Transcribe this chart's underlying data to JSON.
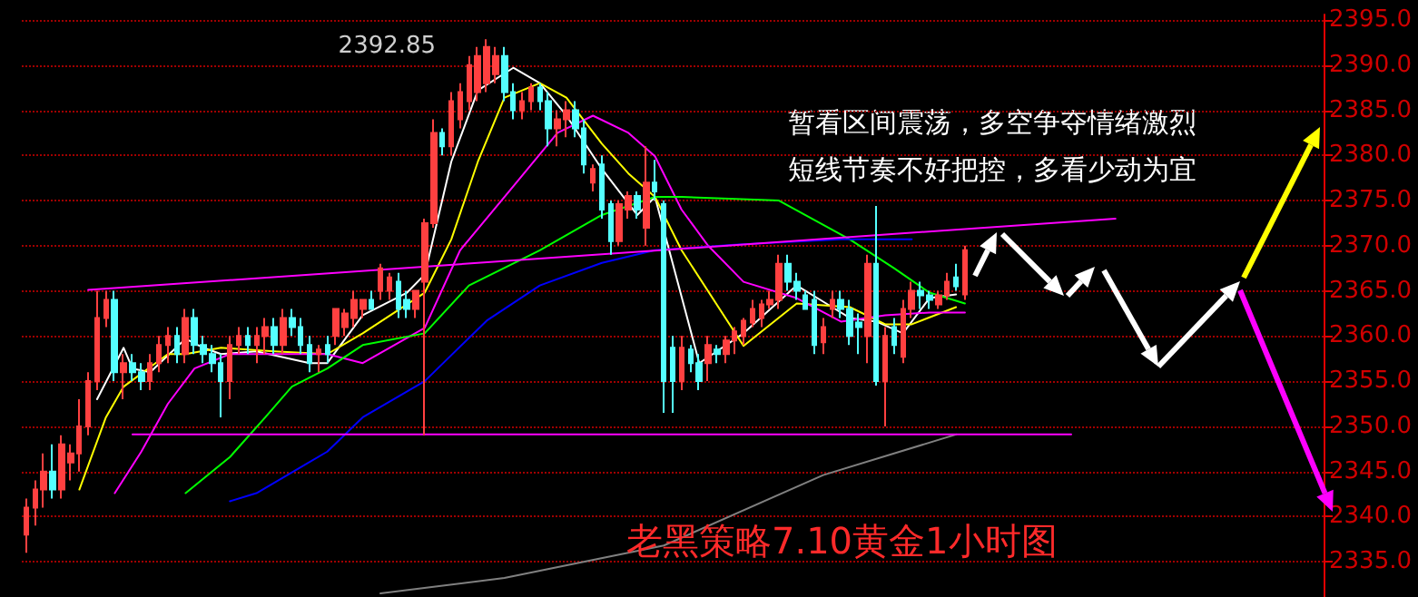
{
  "chart_data": {
    "type": "candlestick",
    "title": "老黑策略7.10黄金1小时图",
    "annotations": [
      "暂看区间震荡，多空争夺情绪激烈",
      "短线节奏不好把控，多看少动为宜"
    ],
    "categories": [
      null,
      null,
      null,
      null,
      null,
      null,
      null,
      null,
      null,
      null,
      null,
      null,
      null,
      null,
      null,
      null,
      null,
      null,
      null,
      null,
      null,
      null,
      null,
      null,
      null,
      null,
      null,
      null,
      null,
      null,
      null,
      null,
      null,
      null,
      null,
      null,
      null,
      null,
      null,
      null,
      null,
      null,
      null,
      null,
      null,
      null,
      null,
      null,
      null,
      null,
      null,
      null,
      null,
      null,
      null,
      null,
      null,
      null,
      null,
      null,
      null,
      null,
      null,
      null,
      null,
      null,
      null,
      null,
      null,
      null,
      null,
      null,
      null,
      null,
      null,
      null,
      null,
      null,
      null,
      null,
      null,
      null,
      null,
      null,
      null,
      null,
      null,
      null,
      null,
      null,
      null,
      null,
      null,
      null,
      null,
      null,
      null,
      null,
      null,
      null,
      null,
      null,
      null,
      null,
      null,
      null,
      null,
      null,
      null,
      null,
      null,
      null,
      null,
      null,
      null,
      null,
      null,
      null,
      null,
      null,
      null,
      null,
      null,
      null,
      null,
      null,
      null,
      null,
      null,
      null,
      null,
      null,
      null,
      null,
      null,
      null,
      null,
      null,
      null,
      null,
      null,
      null,
      null,
      null,
      null,
      null,
      null
    ],
    "colors": [
      "#ff4040",
      "#ff4040",
      "#ff4040",
      "#54ffff",
      "#ff4040",
      "#ff4040",
      "#ff4040",
      "#ff4040",
      "#ff4040",
      "#ff4040",
      "#54ffff",
      "#ff4040",
      "#54ffff",
      "#54ffff",
      "#ff4040",
      "#ff4040",
      "#ff4040",
      "#54ffff",
      "#ff4040",
      "#54ffff",
      "#54ffff",
      "#54ffff",
      "#54ffff",
      "#ff4040",
      "#ff4040",
      "#54ffff",
      "#ff4040",
      "#ff4040",
      "#54ffff",
      "#ff4040",
      "#54ffff",
      "#54ffff",
      "#54ffff",
      "#ff4040",
      "#54ffff",
      "#ff4040",
      "#ff4040",
      "#ff4040",
      "#ff4040",
      "#54ffff",
      "#ff4040",
      "#ff4040",
      "#54ffff",
      "#54ffff",
      "#ff4040",
      "#ff4040",
      "#ff4040",
      "#54ffff",
      "#ff4040",
      "#ff4040",
      "#ff4040",
      "#ff4040",
      "#ff4040",
      "#ff4040",
      "#54ffff",
      "#54ffff",
      "#ff4040",
      "#ff4040",
      "#54ffff",
      "#54ffff",
      "#ff4040",
      "#ff4040",
      "#54ffff",
      "#54ffff",
      "#ff4040",
      "#54ffff",
      "#54ffff",
      "#ff4040",
      "#ff4040",
      "#54ffff",
      "#ff4040",
      "#54ffff",
      "#54ffff",
      "#54ffff",
      "#ff4040",
      "#54ffff",
      "#54ffff",
      "#ff4040",
      "#54ffff",
      "#ff4040",
      "#ff4040",
      "#ff4040",
      "#ff4040",
      "#ff4040",
      "#ff4040",
      "#ff4040",
      "#54ffff",
      "#54ffff",
      "#54ffff",
      "#54ffff",
      "#ff4040",
      "#ff4040",
      "#54ffff",
      "#54ffff",
      "#54ffff",
      "#ff4040",
      "#54ffff",
      "#ff4040",
      "#54ffff",
      "#ff4040",
      "#ff4040",
      "#54ffff",
      "#54ffff",
      "#ff4040",
      "#ff4040",
      "#54ffff",
      "#ff4040",
      null,
      null,
      null,
      null,
      null,
      null,
      null,
      null,
      null,
      null,
      null,
      null,
      null,
      null,
      null,
      null,
      null,
      null,
      null,
      null,
      null,
      null,
      null,
      null,
      null,
      null,
      null,
      null,
      null,
      null,
      null,
      null,
      null,
      null,
      null,
      null,
      null,
      null,
      null,
      null
    ],
    "ohlc": [
      [
        2338,
        2342,
        2336,
        2341
      ],
      [
        2341,
        2344,
        2339,
        2343
      ],
      [
        2343,
        2347,
        2341,
        2345
      ],
      [
        2345,
        2348,
        2342,
        2343
      ],
      [
        2343,
        2349,
        2342,
        2348
      ],
      [
        2346,
        2348,
        2344,
        2347
      ],
      [
        2347,
        2353,
        2345,
        2350
      ],
      [
        2350,
        2356,
        2349,
        2355
      ],
      [
        2355,
        2365,
        2354,
        2362
      ],
      [
        2362,
        2365,
        2361,
        2364
      ],
      [
        2364,
        2365,
        2355,
        2356
      ],
      [
        2356,
        2358,
        2353,
        2357
      ],
      [
        2357,
        2358,
        2355,
        2356
      ],
      [
        2356,
        2357,
        2354,
        2355
      ],
      [
        2355,
        2358,
        2354,
        2357
      ],
      [
        2357,
        2360,
        2356,
        2359
      ],
      [
        2359,
        2361,
        2357,
        2360
      ],
      [
        2360,
        2361,
        2357,
        2358
      ],
      [
        2358,
        2363,
        2357,
        2362
      ],
      [
        2362,
        2363,
        2358,
        2359
      ],
      [
        2359,
        2360,
        2357,
        2358
      ],
      [
        2358,
        2359,
        2356,
        2357
      ],
      [
        2357,
        2358,
        2351,
        2355
      ],
      [
        2355,
        2360,
        2353,
        2359
      ],
      [
        2359,
        2361,
        2358,
        2360
      ],
      [
        2360,
        2361,
        2358,
        2359
      ],
      [
        2359,
        2361,
        2357,
        2360
      ],
      [
        2360,
        2362,
        2358,
        2361
      ],
      [
        2361,
        2362,
        2358,
        2359
      ],
      [
        2359,
        2363,
        2358,
        2362
      ],
      [
        2362,
        2363,
        2360,
        2361
      ],
      [
        2361,
        2362,
        2358,
        2359
      ],
      [
        2359,
        2360,
        2356,
        2357
      ],
      [
        2358,
        2359,
        2356,
        2358.5
      ],
      [
        2359,
        2360,
        2357,
        2358
      ],
      [
        2360,
        2363,
        2359,
        2363
      ],
      [
        2361,
        2363,
        2360,
        2362.5
      ],
      [
        2362,
        2365,
        2361,
        2364
      ],
      [
        2363,
        2364,
        2362,
        2364
      ],
      [
        2364,
        2365,
        2363,
        2363
      ],
      [
        2365,
        2368,
        2364,
        2367.5
      ],
      [
        2365,
        2367,
        2364,
        2366.5
      ],
      [
        2366,
        2367,
        2362,
        2363
      ],
      [
        2364,
        2365,
        2362,
        2363
      ],
      [
        2363,
        2365,
        2362,
        2365
      ],
      [
        2366,
        2373,
        2349,
        2372.5
      ],
      [
        2372.5,
        2384,
        2372,
        2382.5
      ],
      [
        2382.5,
        2383,
        2380,
        2381
      ],
      [
        2381,
        2387,
        2380,
        2386
      ],
      [
        2384,
        2388,
        2383,
        2387
      ],
      [
        2386,
        2391,
        2385,
        2390
      ],
      [
        2387,
        2392,
        2386,
        2391
      ],
      [
        2388,
        2392.85,
        2387,
        2392
      ],
      [
        2389,
        2392,
        2388,
        2391
      ],
      [
        2391,
        2392,
        2386,
        2387
      ],
      [
        2387,
        2388,
        2384,
        2385
      ],
      [
        2385,
        2387,
        2384,
        2386
      ],
      [
        2386,
        2388,
        2385,
        2387.5
      ],
      [
        2387.5,
        2388,
        2385,
        2386
      ],
      [
        2386,
        2387,
        2381,
        2383
      ],
      [
        2383,
        2385,
        2381,
        2384
      ],
      [
        2384,
        2386,
        2382,
        2385
      ],
      [
        2385,
        2386,
        2382,
        2383
      ],
      [
        2383,
        2384,
        2378,
        2379
      ],
      [
        2377,
        2379,
        2376,
        2378.5
      ],
      [
        2379,
        2380,
        2373,
        2374
      ],
      [
        2374.6,
        2375,
        2369,
        2370.5
      ],
      [
        2370.5,
        2375,
        2370,
        2374.6
      ],
      [
        2374,
        2376,
        2373,
        2375.5
      ],
      [
        2375.5,
        2376,
        2373,
        2374
      ],
      [
        2372,
        2381,
        2370,
        2377
      ],
      [
        2377,
        2379.5,
        2375,
        2376
      ],
      [
        2374.6,
        2375,
        2351.5,
        2355
      ],
      [
        2358.7,
        2360,
        2351.5,
        2355
      ],
      [
        2355,
        2360,
        2354,
        2358.7
      ],
      [
        2358.5,
        2359,
        2356,
        2357
      ],
      [
        2357,
        2358,
        2354,
        2355
      ],
      [
        2357,
        2360,
        2355,
        2359
      ],
      [
        2358.5,
        2359,
        2357,
        2358
      ],
      [
        2358,
        2360,
        2357,
        2359.5
      ],
      [
        2359.5,
        2361,
        2358,
        2360.5
      ],
      [
        2360,
        2362,
        2359,
        2361.7
      ],
      [
        2361.5,
        2364,
        2361,
        2363
      ],
      [
        2362,
        2364,
        2361,
        2363.5
      ],
      [
        2363.5,
        2365,
        2363,
        2364
      ],
      [
        2364,
        2369,
        2363,
        2368
      ],
      [
        2368,
        2369,
        2365,
        2366
      ],
      [
        2366,
        2367,
        2364,
        2365
      ],
      [
        2364.5,
        2365,
        2363,
        2363
      ],
      [
        2364,
        2365,
        2358,
        2359
      ],
      [
        2359.3,
        2362,
        2358,
        2361
      ],
      [
        2363,
        2365,
        2362,
        2364
      ],
      [
        2364,
        2365,
        2362,
        2363
      ],
      [
        2363,
        2364,
        2359,
        2360
      ],
      [
        2361.5,
        2362.5,
        2358,
        2361
      ],
      [
        2360,
        2369,
        2357,
        2368
      ],
      [
        2368,
        2374.4,
        2354.5,
        2355
      ],
      [
        2355,
        2361,
        2350,
        2360
      ],
      [
        2361,
        2362,
        2358,
        2359
      ],
      [
        2357.7,
        2364,
        2357,
        2363
      ],
      [
        2363,
        2366,
        2362,
        2365
      ],
      [
        2365,
        2366,
        2363,
        2364.5
      ],
      [
        2364.5,
        2365,
        2363,
        2364
      ],
      [
        2363.5,
        2365,
        2363,
        2364.5
      ],
      [
        2364.5,
        2367,
        2364,
        2366
      ],
      [
        2366.5,
        2368,
        2365,
        2365.5
      ],
      [
        2364.6,
        2370,
        2364,
        2369.5
      ],
      null,
      null,
      null,
      null,
      null,
      null,
      null,
      null,
      null,
      null,
      null,
      null,
      null,
      null,
      null,
      null,
      null,
      null,
      null,
      null,
      null,
      null,
      null,
      null,
      null,
      null,
      null,
      null,
      null,
      null,
      null,
      null,
      null,
      null,
      null,
      null,
      null,
      null,
      null,
      null
    ],
    "value_labels": [
      null,
      null,
      null,
      null,
      null,
      null,
      null,
      null,
      null,
      null,
      null,
      null,
      null,
      null,
      null,
      null,
      null,
      null,
      null,
      null,
      null,
      null,
      null,
      null,
      null,
      null,
      null,
      null,
      null,
      null,
      null,
      null,
      null,
      null,
      null,
      null,
      null,
      null,
      null,
      null,
      null,
      null,
      null,
      null,
      null,
      null,
      null,
      null,
      null,
      null,
      null,
      null,
      "2392.85",
      null,
      null,
      null,
      null,
      null,
      null,
      null,
      null,
      null,
      null,
      null,
      null,
      null,
      null,
      null,
      null,
      null,
      null,
      null,
      null,
      null,
      null,
      null,
      null,
      null,
      null,
      null,
      null,
      null,
      null,
      null,
      null,
      null,
      null,
      null,
      null,
      null,
      null,
      null,
      null,
      null,
      null,
      null,
      null,
      null,
      null,
      null,
      null,
      null,
      null,
      null,
      null,
      null,
      null,
      null,
      null,
      null,
      null,
      null,
      null,
      null,
      null,
      null,
      null,
      null,
      null,
      null,
      null,
      null,
      null,
      null,
      null,
      null,
      null,
      null,
      null,
      null,
      null,
      null,
      null,
      null,
      null,
      null,
      null,
      null,
      null,
      null,
      null,
      null,
      null,
      null,
      null,
      null,
      null
    ],
    "series": [
      {
        "type": "line",
        "color": "#ffffff",
        "values": [
          null,
          null,
          null,
          null,
          null,
          null,
          null,
          null,
          2353,
          null,
          null,
          2358.7,
          2356.4,
          null,
          2356,
          null,
          null,
          null,
          2359.7,
          null,
          2358.7,
          null,
          2358,
          null,
          null,
          null,
          2358.3,
          null,
          null,
          null,
          null,
          null,
          2357,
          null,
          2357,
          null,
          null,
          null,
          2362.3,
          null,
          null,
          null,
          null,
          2364.8,
          null,
          2366.8,
          null,
          null,
          2379.3,
          null,
          null,
          2387.2,
          null,
          null,
          null,
          2389.7,
          null,
          null,
          2388,
          null,
          null,
          2384.4,
          null,
          null,
          null,
          2378.5,
          null,
          null,
          null,
          2373.4,
          null,
          2375.4,
          null,
          null,
          null,
          null,
          2357,
          null,
          null,
          null,
          null,
          2360.3,
          null,
          null,
          null,
          null,
          null,
          2365.6,
          null,
          null,
          2363.8,
          null,
          null,
          2362,
          null,
          null,
          2361.6,
          null,
          null,
          2360.3,
          null,
          null,
          2364.2,
          null,
          null,
          2364.6,
          null,
          null,
          null,
          null,
          null,
          null,
          null,
          null,
          null,
          null,
          null,
          null,
          null,
          null,
          null,
          null,
          null,
          null,
          null,
          null,
          null,
          null,
          null,
          null,
          null,
          null,
          null,
          null,
          null,
          null,
          null,
          null,
          null,
          null,
          null,
          null,
          null,
          null,
          null,
          null,
          null
        ]
      },
      {
        "type": "line",
        "color": "#ffff00",
        "values": [
          null,
          null,
          null,
          null,
          null,
          null,
          2343,
          null,
          null,
          2351,
          null,
          2354.4,
          null,
          null,
          null,
          null,
          2358,
          null,
          2358,
          null,
          null,
          null,
          2358.7,
          null,
          null,
          null,
          null,
          null,
          2358.3,
          null,
          null,
          null,
          null,
          null,
          2358,
          null,
          null,
          null,
          2360.3,
          null,
          null,
          null,
          null,
          null,
          null,
          2364.8,
          null,
          null,
          2370.7,
          null,
          null,
          2379.3,
          null,
          null,
          2386.4,
          null,
          null,
          null,
          2388,
          null,
          null,
          2386.4,
          null,
          null,
          null,
          2381.3,
          null,
          null,
          2378,
          null,
          null,
          2375.4,
          null,
          null,
          2369.5,
          null,
          null,
          null,
          null,
          null,
          null,
          2358.9,
          null,
          null,
          null,
          null,
          null,
          2363.6,
          null,
          null,
          null,
          null,
          null,
          2363.2,
          null,
          null,
          null,
          2361.3,
          null,
          null,
          2361.3,
          null,
          null,
          null,
          null,
          2363.2,
          null,
          null,
          null,
          null,
          null,
          null,
          null,
          null,
          null,
          null,
          null,
          null,
          null,
          null,
          null,
          null,
          null,
          null,
          null,
          null,
          null,
          null,
          null,
          null,
          null,
          null,
          null,
          null,
          null,
          null,
          null,
          null,
          null,
          null,
          null,
          null,
          null,
          null,
          null,
          null,
          null
        ]
      },
      {
        "type": "line",
        "color": "#ff00ff",
        "values": [
          null,
          null,
          null,
          null,
          null,
          null,
          null,
          null,
          null,
          null,
          2342.6,
          null,
          null,
          2347.2,
          null,
          null,
          2352.5,
          null,
          null,
          2356.4,
          null,
          null,
          null,
          2358,
          null,
          null,
          null,
          null,
          null,
          null,
          null,
          null,
          null,
          null,
          2358,
          null,
          null,
          null,
          2357,
          null,
          null,
          null,
          null,
          null,
          null,
          2360.9,
          null,
          null,
          null,
          2369.5,
          null,
          null,
          null,
          null,
          2375.4,
          null,
          null,
          null,
          null,
          null,
          2382.5,
          null,
          null,
          null,
          2384.4,
          null,
          null,
          null,
          2382.5,
          null,
          null,
          2379.9,
          null,
          null,
          2374,
          null,
          null,
          2370,
          null,
          null,
          null,
          2366,
          null,
          null,
          null,
          null,
          null,
          2364.2,
          null,
          null,
          null,
          null,
          2361.6,
          null,
          null,
          null,
          null,
          2362.3,
          null,
          null,
          null,
          null,
          2362.6,
          null,
          null,
          null,
          2362.6,
          null,
          null,
          null,
          null,
          null,
          null,
          null,
          null,
          null,
          null,
          null,
          null,
          null,
          null,
          null,
          null,
          null,
          null,
          null,
          null,
          null,
          null,
          null,
          null,
          null,
          null,
          null,
          null,
          null,
          null,
          null,
          null,
          null,
          null,
          null,
          null,
          null,
          null,
          null,
          null
        ]
      },
      {
        "type": "line",
        "color": "#00ff00",
        "values": [
          null,
          null,
          null,
          null,
          null,
          null,
          null,
          null,
          null,
          null,
          null,
          null,
          null,
          null,
          null,
          null,
          null,
          null,
          2342.6,
          null,
          null,
          null,
          null,
          2346.6,
          null,
          null,
          null,
          2351,
          null,
          null,
          2354.4,
          null,
          null,
          null,
          2356.4,
          null,
          null,
          null,
          2359,
          null,
          null,
          null,
          null,
          null,
          null,
          2360.3,
          null,
          null,
          null,
          null,
          2365.6,
          null,
          null,
          null,
          null,
          null,
          null,
          null,
          2369.5,
          null,
          null,
          null,
          null,
          null,
          null,
          2373.4,
          null,
          null,
          null,
          null,
          null,
          2375.4,
          null,
          null,
          2375.4,
          null,
          null,
          null,
          null,
          null,
          null,
          null,
          null,
          null,
          null,
          2375,
          null,
          null,
          null,
          null,
          null,
          null,
          null,
          2370.7,
          null,
          null,
          null,
          null,
          2367.5,
          null,
          null,
          null,
          2364.8,
          null,
          null,
          null,
          2363.6,
          null,
          null,
          null,
          null,
          null,
          null,
          null,
          null,
          null,
          null,
          null,
          null,
          null,
          null,
          null,
          null,
          null,
          null,
          null,
          null,
          null,
          null,
          null,
          null,
          null,
          null,
          null,
          null,
          null,
          null,
          null,
          null,
          null,
          null,
          null,
          null,
          null,
          null,
          null,
          null
        ]
      },
      {
        "type": "line",
        "color": "#0000ff",
        "values": [
          null,
          null,
          null,
          null,
          null,
          null,
          null,
          null,
          null,
          null,
          null,
          null,
          null,
          null,
          null,
          null,
          null,
          null,
          null,
          null,
          null,
          null,
          null,
          2341.7,
          null,
          null,
          2342.6,
          null,
          null,
          null,
          null,
          null,
          null,
          null,
          2347.2,
          null,
          null,
          null,
          2351,
          null,
          null,
          null,
          null,
          null,
          null,
          2355,
          null,
          null,
          null,
          null,
          null,
          null,
          2361.7,
          null,
          null,
          null,
          null,
          null,
          2365.6,
          null,
          null,
          null,
          null,
          null,
          null,
          2368.1,
          null,
          null,
          null,
          null,
          null,
          2369.5,
          null,
          null,
          null,
          null,
          null,
          null,
          null,
          null,
          2370.1,
          null,
          null,
          null,
          null,
          null,
          null,
          null,
          null,
          null,
          null,
          null,
          2370.7,
          null,
          null,
          null,
          null,
          null,
          null,
          null,
          2370.7,
          null,
          null,
          null,
          null,
          null,
          null,
          null,
          null,
          null,
          null,
          null,
          null,
          null,
          null,
          null,
          null,
          null,
          null,
          null,
          null,
          null,
          null,
          null,
          null,
          null,
          null,
          null,
          null,
          null,
          null,
          null,
          null,
          null,
          null,
          null,
          null,
          null,
          null,
          null,
          null,
          null,
          null,
          null,
          null,
          null,
          null
        ]
      },
      {
        "type": "line",
        "color": "#808080",
        "values": [
          null,
          null,
          null,
          null,
          null,
          null,
          null,
          null,
          null,
          null,
          null,
          null,
          null,
          null,
          null,
          null,
          null,
          null,
          null,
          null,
          null,
          null,
          null,
          null,
          null,
          null,
          null,
          null,
          null,
          null,
          null,
          null,
          null,
          null,
          null,
          null,
          null,
          null,
          null,
          null,
          2331.5,
          null,
          null,
          null,
          null,
          null,
          null,
          null,
          null,
          null,
          null,
          null,
          null,
          null,
          2333.2,
          null,
          null,
          null,
          null,
          null,
          null,
          null,
          null,
          null,
          null,
          null,
          null,
          null,
          null,
          null,
          null,
          null,
          2336.8,
          null,
          null,
          null,
          null,
          null,
          null,
          null,
          null,
          null,
          null,
          null,
          null,
          null,
          null,
          null,
          null,
          null,
          2344.6,
          null,
          null,
          null,
          null,
          null,
          null,
          null,
          null,
          null,
          null,
          null,
          null,
          null,
          null,
          2349.1,
          null,
          null,
          null,
          null,
          null,
          null,
          null,
          null,
          null,
          null,
          null,
          null,
          null,
          null,
          null,
          null,
          null,
          null,
          null,
          null,
          null,
          null,
          null,
          null,
          null,
          null,
          null,
          null,
          null,
          null,
          null,
          null,
          null,
          null,
          null,
          null,
          null,
          null,
          null,
          null,
          null
        ]
      },
      {
        "type": "line",
        "color": "#ff00ff",
        "values": [
          null,
          null,
          null,
          null,
          null,
          null,
          null,
          2365.1,
          null,
          null,
          null,
          null,
          null,
          null,
          null,
          null,
          null,
          null,
          null,
          null,
          null,
          null,
          null,
          null,
          null,
          null,
          null,
          null,
          null,
          null,
          null,
          null,
          null,
          null,
          null,
          null,
          null,
          null,
          null,
          null,
          null,
          null,
          null,
          null,
          null,
          null,
          null,
          null,
          null,
          null,
          null,
          null,
          null,
          null,
          null,
          null,
          null,
          null,
          null,
          null,
          null,
          null,
          null,
          null,
          null,
          null,
          null,
          null,
          null,
          null,
          null,
          null,
          null,
          null,
          null,
          null,
          null,
          null,
          null,
          null,
          null,
          null,
          null,
          null,
          null,
          null,
          null,
          null,
          null,
          null,
          null,
          null,
          null,
          null,
          null,
          null,
          null,
          null,
          null,
          null,
          null,
          null,
          null,
          null,
          null,
          null,
          null,
          null,
          null,
          null,
          null,
          null,
          null,
          null,
          null,
          null,
          null,
          null,
          null,
          null,
          null,
          null,
          null,
          2373,
          null,
          null,
          null,
          null,
          null,
          null,
          null,
          null,
          null,
          null,
          null,
          null,
          null,
          null,
          null,
          null,
          null,
          null,
          null,
          null,
          null,
          null,
          null
        ]
      },
      {
        "type": "line",
        "color": "#ff00ff",
        "values": [
          null,
          null,
          null,
          null,
          null,
          null,
          null,
          null,
          null,
          null,
          null,
          null,
          2349.1,
          null,
          null,
          null,
          null,
          null,
          null,
          null,
          null,
          null,
          null,
          null,
          null,
          null,
          null,
          null,
          null,
          null,
          null,
          null,
          null,
          null,
          null,
          null,
          null,
          null,
          null,
          null,
          null,
          null,
          null,
          null,
          null,
          null,
          null,
          null,
          null,
          null,
          null,
          null,
          null,
          null,
          null,
          null,
          null,
          null,
          null,
          null,
          null,
          null,
          null,
          null,
          null,
          null,
          null,
          null,
          null,
          null,
          null,
          null,
          null,
          null,
          null,
          null,
          null,
          null,
          null,
          null,
          null,
          null,
          null,
          null,
          null,
          null,
          null,
          null,
          null,
          null,
          null,
          null,
          null,
          null,
          null,
          null,
          null,
          null,
          null,
          null,
          null,
          null,
          null,
          null,
          null,
          null,
          null,
          null,
          null,
          null,
          null,
          null,
          null,
          null,
          null,
          null,
          null,
          null,
          2349.1,
          null,
          null,
          null,
          null,
          null,
          null,
          null,
          null,
          null,
          null,
          null,
          null,
          null,
          null,
          null,
          null,
          null,
          null,
          null,
          null,
          null,
          null,
          null,
          null,
          null,
          null,
          null,
          null
        ]
      }
    ],
    "ylim": [
      2331.1,
      2395.6
    ],
    "yticks": [
      {
        "value": 2335,
        "label": "2335.0"
      },
      {
        "value": 2340,
        "label": "2340.0"
      },
      {
        "value": 2345,
        "label": "2345.0"
      },
      {
        "value": 2350,
        "label": "2350.0"
      },
      {
        "value": 2355,
        "label": "2355.0"
      },
      {
        "value": 2360,
        "label": "2360.0"
      },
      {
        "value": 2365,
        "label": "2365.0"
      },
      {
        "value": 2370,
        "label": "2370.0"
      },
      {
        "value": 2375,
        "label": "2375.0"
      },
      {
        "value": 2380,
        "label": "2380.0"
      },
      {
        "value": 2385,
        "label": "2385.0"
      },
      {
        "value": 2390,
        "label": "2390.0"
      },
      {
        "value": 2395,
        "label": "2395.0"
      }
    ],
    "tick_labels": "y",
    "grid": "y"
  }
}
